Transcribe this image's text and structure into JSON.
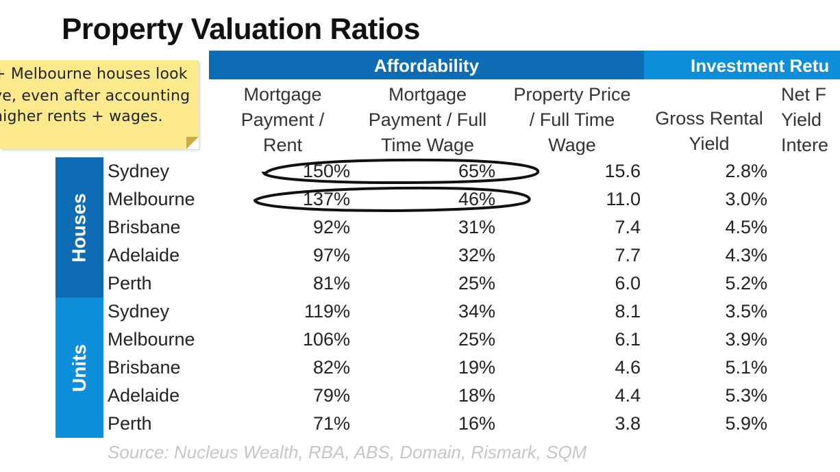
{
  "title": "Property Valuation Ratios",
  "note": {
    "lines": [
      "+ Melbourne houses look",
      "ve, even after accounting",
      "higher rents + wages."
    ]
  },
  "bands": {
    "affordability": "Affordability",
    "investment": "Investment Retu"
  },
  "columns": [
    "Mortgage\nPayment /\nRent",
    "Mortgage\nPayment / Full\nTime Wage",
    "Property Price\n/ Full Time\nWage",
    "Gross Rental\nYield",
    "Net F\nYield\nIntere"
  ],
  "groups": {
    "houses": "Houses",
    "units": "Units"
  },
  "rows": [
    {
      "city": "Sydney",
      "v": [
        "150%",
        "65%",
        "15.6",
        "2.8%"
      ]
    },
    {
      "city": "Melbourne",
      "v": [
        "137%",
        "46%",
        "11.0",
        "3.0%"
      ]
    },
    {
      "city": "Brisbane",
      "v": [
        "92%",
        "31%",
        "7.4",
        "4.5%"
      ]
    },
    {
      "city": "Adelaide",
      "v": [
        "97%",
        "32%",
        "7.7",
        "4.3%"
      ]
    },
    {
      "city": "Perth",
      "v": [
        "81%",
        "25%",
        "6.0",
        "5.2%"
      ]
    },
    {
      "city": "Sydney",
      "v": [
        "119%",
        "34%",
        "8.1",
        "3.5%"
      ]
    },
    {
      "city": "Melbourne",
      "v": [
        "106%",
        "25%",
        "6.1",
        "3.9%"
      ]
    },
    {
      "city": "Brisbane",
      "v": [
        "82%",
        "19%",
        "4.6",
        "5.1%"
      ]
    },
    {
      "city": "Adelaide",
      "v": [
        "79%",
        "18%",
        "4.4",
        "5.3%"
      ]
    },
    {
      "city": "Perth",
      "v": [
        "71%",
        "16%",
        "3.8",
        "5.9%"
      ]
    }
  ],
  "source": "Source: Nucleus Wealth, RBA, ABS, Domain, Rismark, SQM",
  "colors": {
    "dark_blue": "#0e6cb5",
    "light_blue": "#0c8edb",
    "note_yellow": "#fce98c"
  }
}
